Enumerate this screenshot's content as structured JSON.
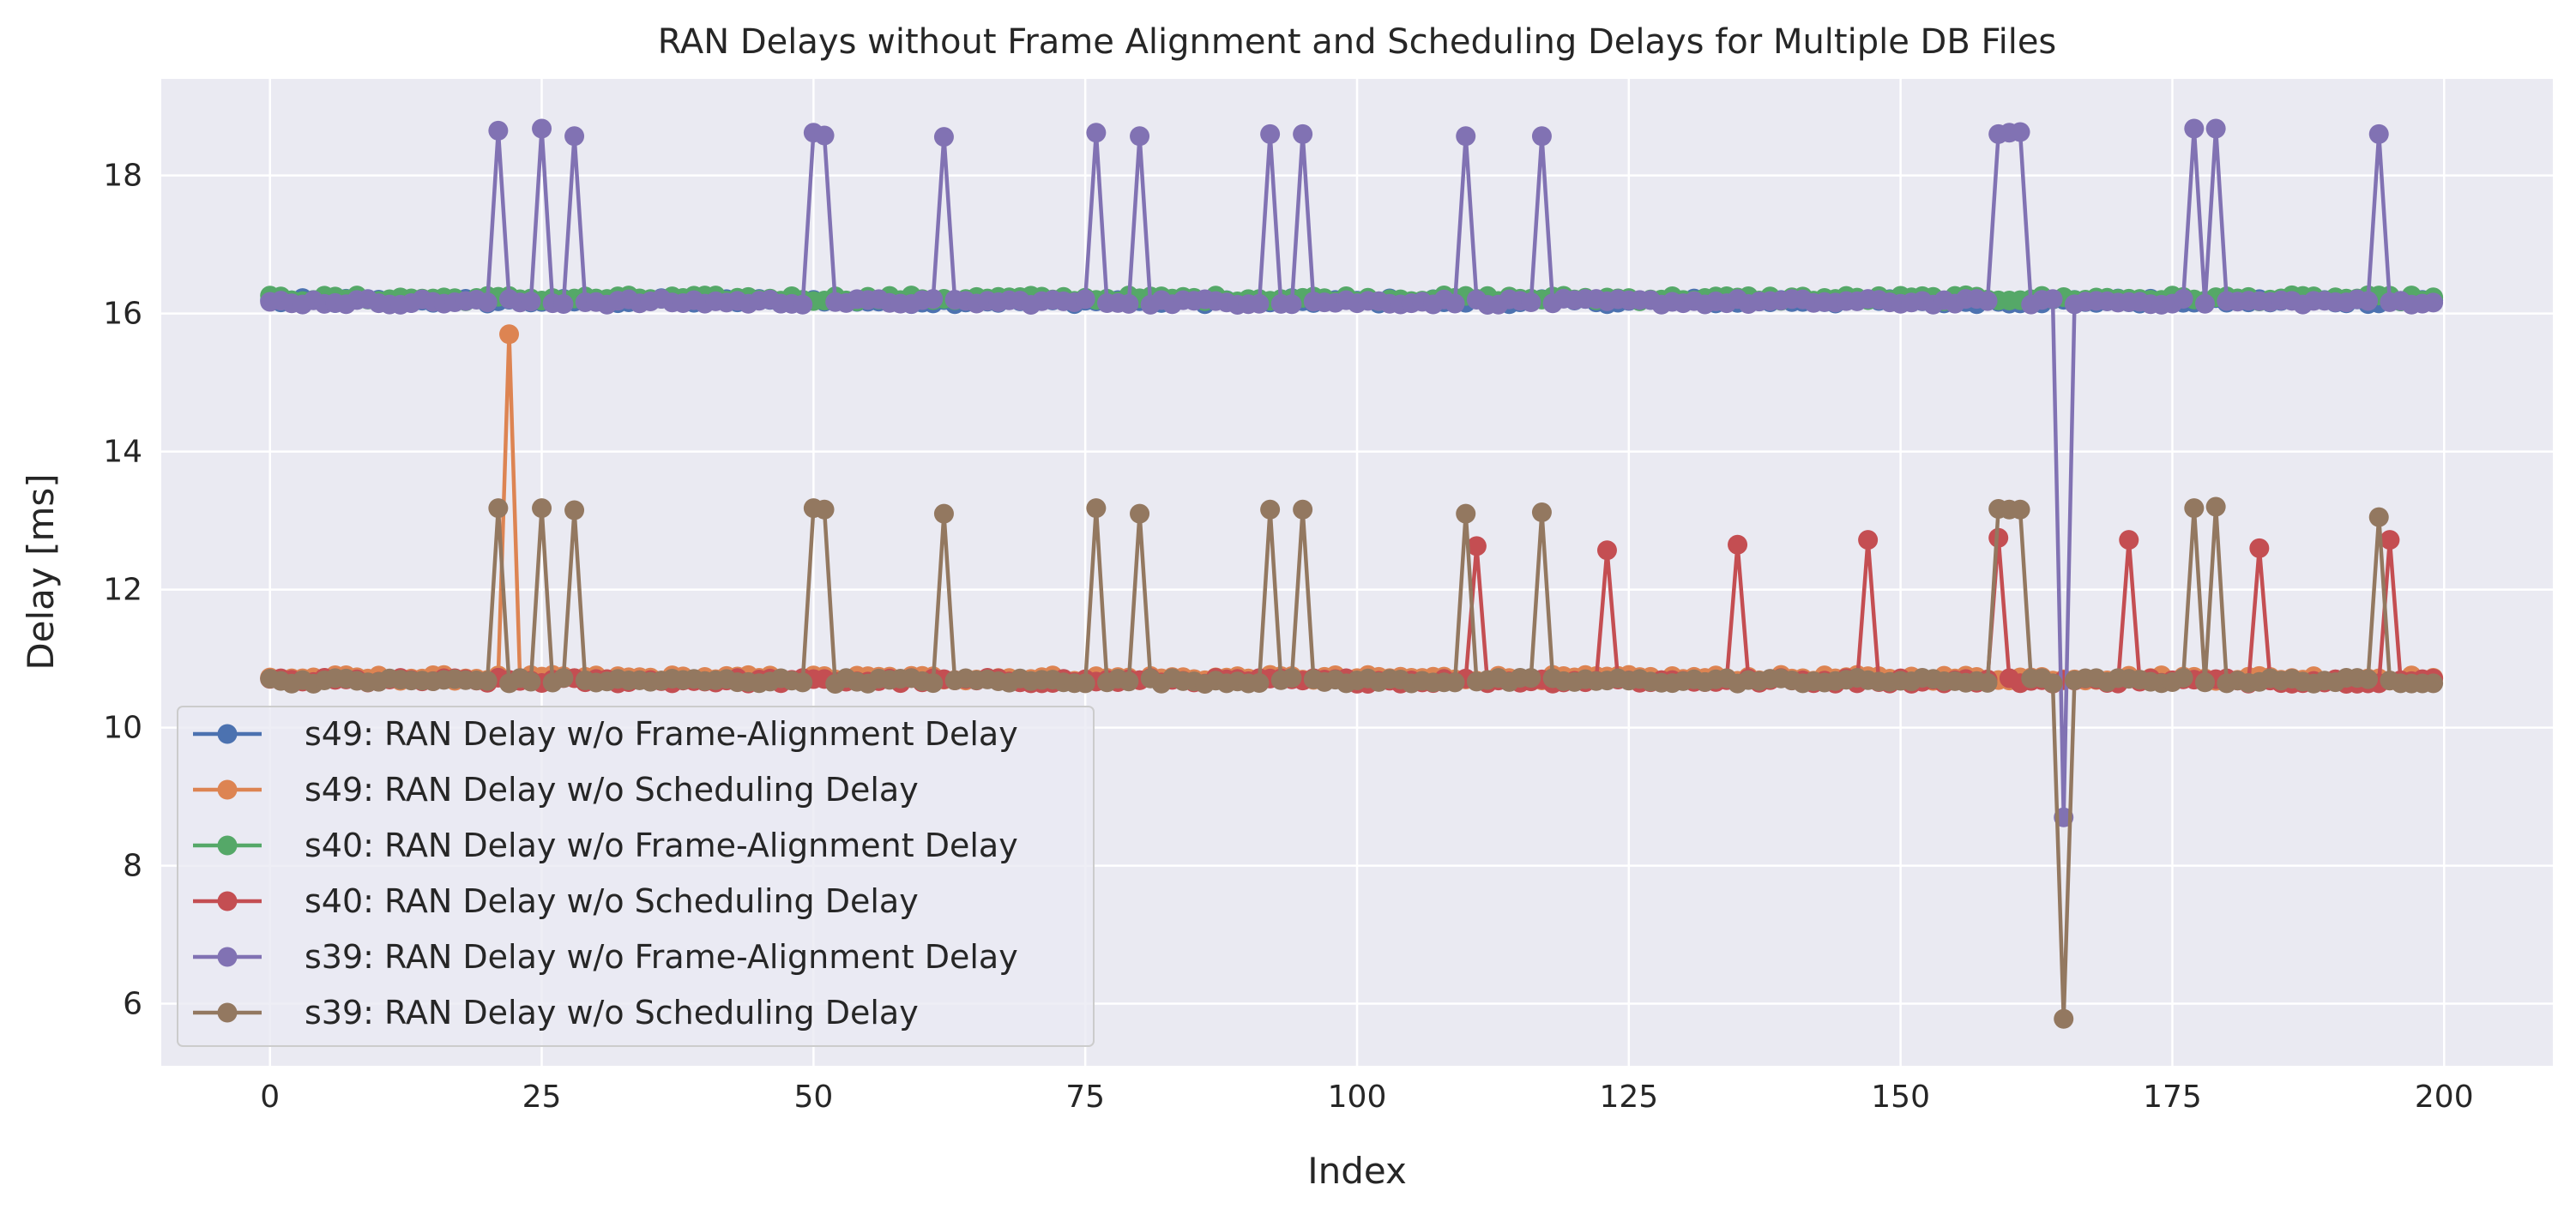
{
  "chart_data": {
    "type": "line",
    "title": "RAN Delays without Frame Alignment and Scheduling Delays for Multiple DB Files",
    "xlabel": "Index",
    "ylabel": "Delay [ms]",
    "xlim": [
      -10,
      210
    ],
    "ylim": [
      5.1,
      19.4
    ],
    "xticks": [
      0,
      25,
      50,
      75,
      100,
      125,
      150,
      175,
      200
    ],
    "yticks": [
      6,
      8,
      10,
      12,
      14,
      16,
      18
    ],
    "grid": true,
    "legend_position": "lower-left",
    "n_points": 200,
    "series": [
      {
        "name": "s49: RAN Delay w/o Frame-Alignment Delay",
        "color": "#4c72b0",
        "base": 16.18,
        "spikes": []
      },
      {
        "name": "s49: RAN Delay w/o Scheduling Delay",
        "color": "#dd8452",
        "base": 10.72,
        "spikes": [
          [
            22,
            15.7
          ]
        ]
      },
      {
        "name": "s40: RAN Delay w/o Frame-Alignment Delay",
        "color": "#55a868",
        "base": 16.22,
        "spikes": []
      },
      {
        "name": "s40: RAN Delay w/o Scheduling Delay",
        "color": "#c44e52",
        "base": 10.68,
        "spikes": [
          [
            111,
            12.63
          ],
          [
            123,
            12.57
          ],
          [
            135,
            12.65
          ],
          [
            147,
            12.72
          ],
          [
            159,
            12.75
          ],
          [
            171,
            12.72
          ],
          [
            183,
            12.6
          ],
          [
            195,
            12.72
          ]
        ]
      },
      {
        "name": "s39: RAN Delay w/o Frame-Alignment Delay",
        "color": "#8172b3",
        "base": 16.17,
        "spikes": [
          [
            21,
            18.65
          ],
          [
            25,
            18.68
          ],
          [
            28,
            18.57
          ],
          [
            50,
            18.62
          ],
          [
            51,
            18.58
          ],
          [
            62,
            18.56
          ],
          [
            76,
            18.62
          ],
          [
            80,
            18.57
          ],
          [
            92,
            18.6
          ],
          [
            95,
            18.6
          ],
          [
            110,
            18.57
          ],
          [
            117,
            18.57
          ],
          [
            159,
            18.6
          ],
          [
            160,
            18.62
          ],
          [
            161,
            18.63
          ],
          [
            165,
            8.7
          ],
          [
            177,
            18.68
          ],
          [
            179,
            18.68
          ],
          [
            194,
            18.6
          ]
        ]
      },
      {
        "name": "s39: RAN Delay w/o Scheduling Delay",
        "color": "#937860",
        "base": 10.68,
        "spikes": [
          [
            21,
            13.18
          ],
          [
            25,
            13.18
          ],
          [
            28,
            13.15
          ],
          [
            50,
            13.18
          ],
          [
            51,
            13.16
          ],
          [
            62,
            13.1
          ],
          [
            76,
            13.18
          ],
          [
            80,
            13.1
          ],
          [
            92,
            13.16
          ],
          [
            95,
            13.16
          ],
          [
            110,
            13.1
          ],
          [
            117,
            13.12
          ],
          [
            159,
            13.17
          ],
          [
            160,
            13.16
          ],
          [
            161,
            13.16
          ],
          [
            165,
            5.78
          ],
          [
            177,
            13.18
          ],
          [
            179,
            13.2
          ],
          [
            194,
            13.05
          ]
        ]
      }
    ]
  }
}
